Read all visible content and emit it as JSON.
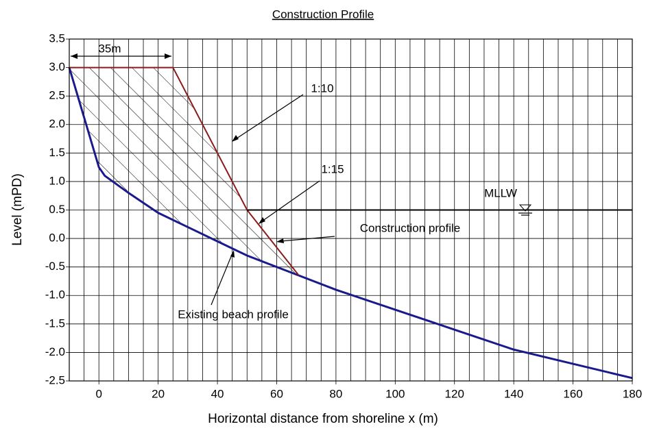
{
  "chart_data": {
    "type": "line",
    "title": "Construction Profile",
    "x_label": "Horizontal distance from shoreline x (m)",
    "y_label": "Level (mPD)",
    "xlim": [
      -10,
      180
    ],
    "xticks": [
      0,
      20,
      40,
      60,
      80,
      100,
      120,
      140,
      160,
      180
    ],
    "x_grid": [
      -5,
      0,
      5,
      10,
      15,
      20,
      25,
      30,
      35,
      40,
      45,
      50,
      55,
      60,
      65,
      70,
      75,
      80,
      85,
      90,
      95,
      100,
      105,
      110,
      115,
      120,
      125,
      130,
      135,
      140,
      145,
      150,
      155,
      160,
      165,
      170,
      175
    ],
    "ylim": [
      -2.5,
      3.5
    ],
    "yticks": [
      -2.5,
      {
        "value": -2,
        "label": "-2.0"
      },
      -1.5,
      {
        "value": -1,
        "label": "-1.0"
      },
      -0.5,
      {
        "value": 0,
        "label": "0.0"
      },
      0.5,
      {
        "value": 1,
        "label": "1.0"
      },
      1.5,
      {
        "value": 2,
        "label": "2.0"
      },
      2.5,
      {
        "value": 3,
        "label": "3.0"
      },
      3.5
    ],
    "grid": true,
    "series": [
      {
        "name": "Existing beach profile",
        "color": "#1a1a8c",
        "x": [
          -10,
          0,
          2,
          10,
          20,
          30,
          40,
          50,
          67.5,
          80,
          100,
          120,
          140,
          160,
          180
        ],
        "values": [
          3.0,
          1.25,
          1.1,
          0.8,
          0.45,
          0.2,
          -0.05,
          -0.3,
          -0.65,
          -0.9,
          -1.25,
          -1.6,
          -1.95,
          -2.2,
          -2.45
        ]
      },
      {
        "name": "Construction profile",
        "color": "#8b1a1a",
        "x": [
          -10,
          25,
          50,
          67.5
        ],
        "values": [
          3.0,
          3.0,
          0.5,
          -0.65
        ]
      },
      {
        "name": "MLLW",
        "color": "#000000",
        "x": [
          50,
          180
        ],
        "values": [
          0.5,
          0.5
        ]
      }
    ],
    "annotations": [
      "35m",
      "1:10",
      "1:15",
      "Construction profile",
      "Existing beach profile"
    ]
  }
}
